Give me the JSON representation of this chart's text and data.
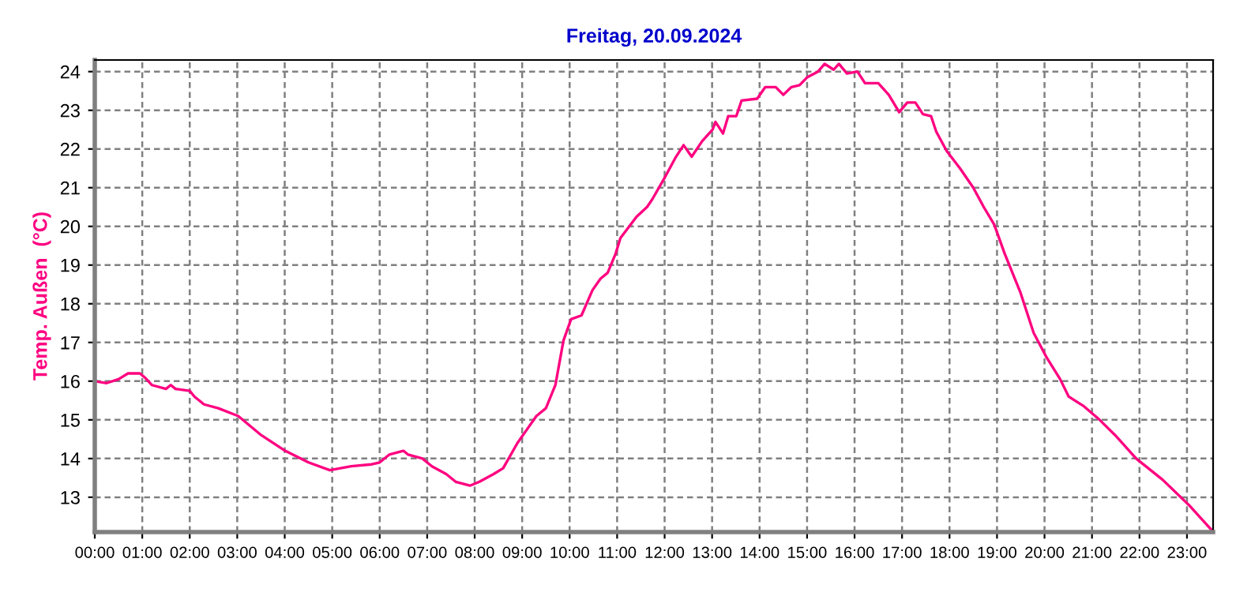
{
  "chart_data": {
    "type": "line",
    "title": "Freitag, 20.09.2024",
    "ylabel": "Temp. Außen  (°C)",
    "series": [
      {
        "color": "#ff0080",
        "x": [
          0,
          0.25,
          0.5,
          0.7,
          0.95,
          1.05,
          1.2,
          1.5,
          1.6,
          1.7,
          2.0,
          2.1,
          2.3,
          2.6,
          3.02,
          3.51,
          4.01,
          4.5,
          4.95,
          5.4,
          5.83,
          6.0,
          6.2,
          6.5,
          6.6,
          6.9,
          7.1,
          7.4,
          7.6,
          7.9,
          8.1,
          8.4,
          8.6,
          8.9,
          9.1,
          9.3,
          9.5,
          9.7,
          9.87,
          10.03,
          10.25,
          10.48,
          10.65,
          10.8,
          10.97,
          11.07,
          11.41,
          11.63,
          11.74,
          12.02,
          12.24,
          12.4,
          12.57,
          12.79,
          13.01,
          13.07,
          13.23,
          13.34,
          13.51,
          13.62,
          13.95,
          14.12,
          14.34,
          14.5,
          14.67,
          14.84,
          15.0,
          15.23,
          15.37,
          15.56,
          15.67,
          15.84,
          16.06,
          16.22,
          16.5,
          16.72,
          16.94,
          17.11,
          17.28,
          17.44,
          17.61,
          17.72,
          17.94,
          18.22,
          18.5,
          18.72,
          18.94,
          19.16,
          19.49,
          19.77,
          20.05,
          20.33,
          20.51,
          20.83,
          21.16,
          21.49,
          21.93,
          22.49,
          23.04,
          23.52
        ],
        "values": [
          16.0,
          15.95,
          16.05,
          16.2,
          16.2,
          16.1,
          15.9,
          15.8,
          15.9,
          15.8,
          15.75,
          15.6,
          15.4,
          15.3,
          15.1,
          14.6,
          14.2,
          13.9,
          13.7,
          13.8,
          13.85,
          13.9,
          14.1,
          14.2,
          14.1,
          14.0,
          13.8,
          13.6,
          13.4,
          13.3,
          13.4,
          13.6,
          13.75,
          14.4,
          14.75,
          15.1,
          15.3,
          15.9,
          17.05,
          17.6,
          17.7,
          18.35,
          18.65,
          18.8,
          19.3,
          19.7,
          20.25,
          20.5,
          20.7,
          21.3,
          21.8,
          22.1,
          21.8,
          22.2,
          22.5,
          22.7,
          22.4,
          22.85,
          22.85,
          23.25,
          23.3,
          23.6,
          23.6,
          23.4,
          23.6,
          23.65,
          23.85,
          24.0,
          24.2,
          24.05,
          24.2,
          23.95,
          24.0,
          23.7,
          23.7,
          23.4,
          22.95,
          23.2,
          23.2,
          22.9,
          22.85,
          22.45,
          21.95,
          21.5,
          21.0,
          20.5,
          20.05,
          19.3,
          18.3,
          17.25,
          16.6,
          16.05,
          15.6,
          15.35,
          15.0,
          14.6,
          14.0,
          13.45,
          12.8,
          12.15
        ]
      }
    ],
    "xlim": [
      0,
      23.55
    ],
    "ylim": [
      12.1,
      24.3
    ],
    "xticks": [
      {
        "value": 0,
        "label": "00:00"
      },
      {
        "value": 1,
        "label": "01:00"
      },
      {
        "value": 2,
        "label": "02:00"
      },
      {
        "value": 3,
        "label": "03:00"
      },
      {
        "value": 4,
        "label": "04:00"
      },
      {
        "value": 5,
        "label": "05:00"
      },
      {
        "value": 6,
        "label": "06:00"
      },
      {
        "value": 7,
        "label": "07:00"
      },
      {
        "value": 8,
        "label": "08:00"
      },
      {
        "value": 9,
        "label": "09:00"
      },
      {
        "value": 10,
        "label": "10:00"
      },
      {
        "value": 11,
        "label": "11:00"
      },
      {
        "value": 12,
        "label": "12:00"
      },
      {
        "value": 13,
        "label": "13:00"
      },
      {
        "value": 14,
        "label": "14:00"
      },
      {
        "value": 15,
        "label": "15:00"
      },
      {
        "value": 16,
        "label": "16:00"
      },
      {
        "value": 17,
        "label": "17:00"
      },
      {
        "value": 18,
        "label": "18:00"
      },
      {
        "value": 19,
        "label": "19:00"
      },
      {
        "value": 20,
        "label": "20:00"
      },
      {
        "value": 21,
        "label": "21:00"
      },
      {
        "value": 22,
        "label": "22:00"
      },
      {
        "value": 23,
        "label": "23:00"
      }
    ],
    "yticks": [
      13,
      14,
      15,
      16,
      17,
      18,
      19,
      20,
      21,
      22,
      23,
      24
    ],
    "grid": true,
    "line_style": "solid",
    "marker": "none"
  }
}
